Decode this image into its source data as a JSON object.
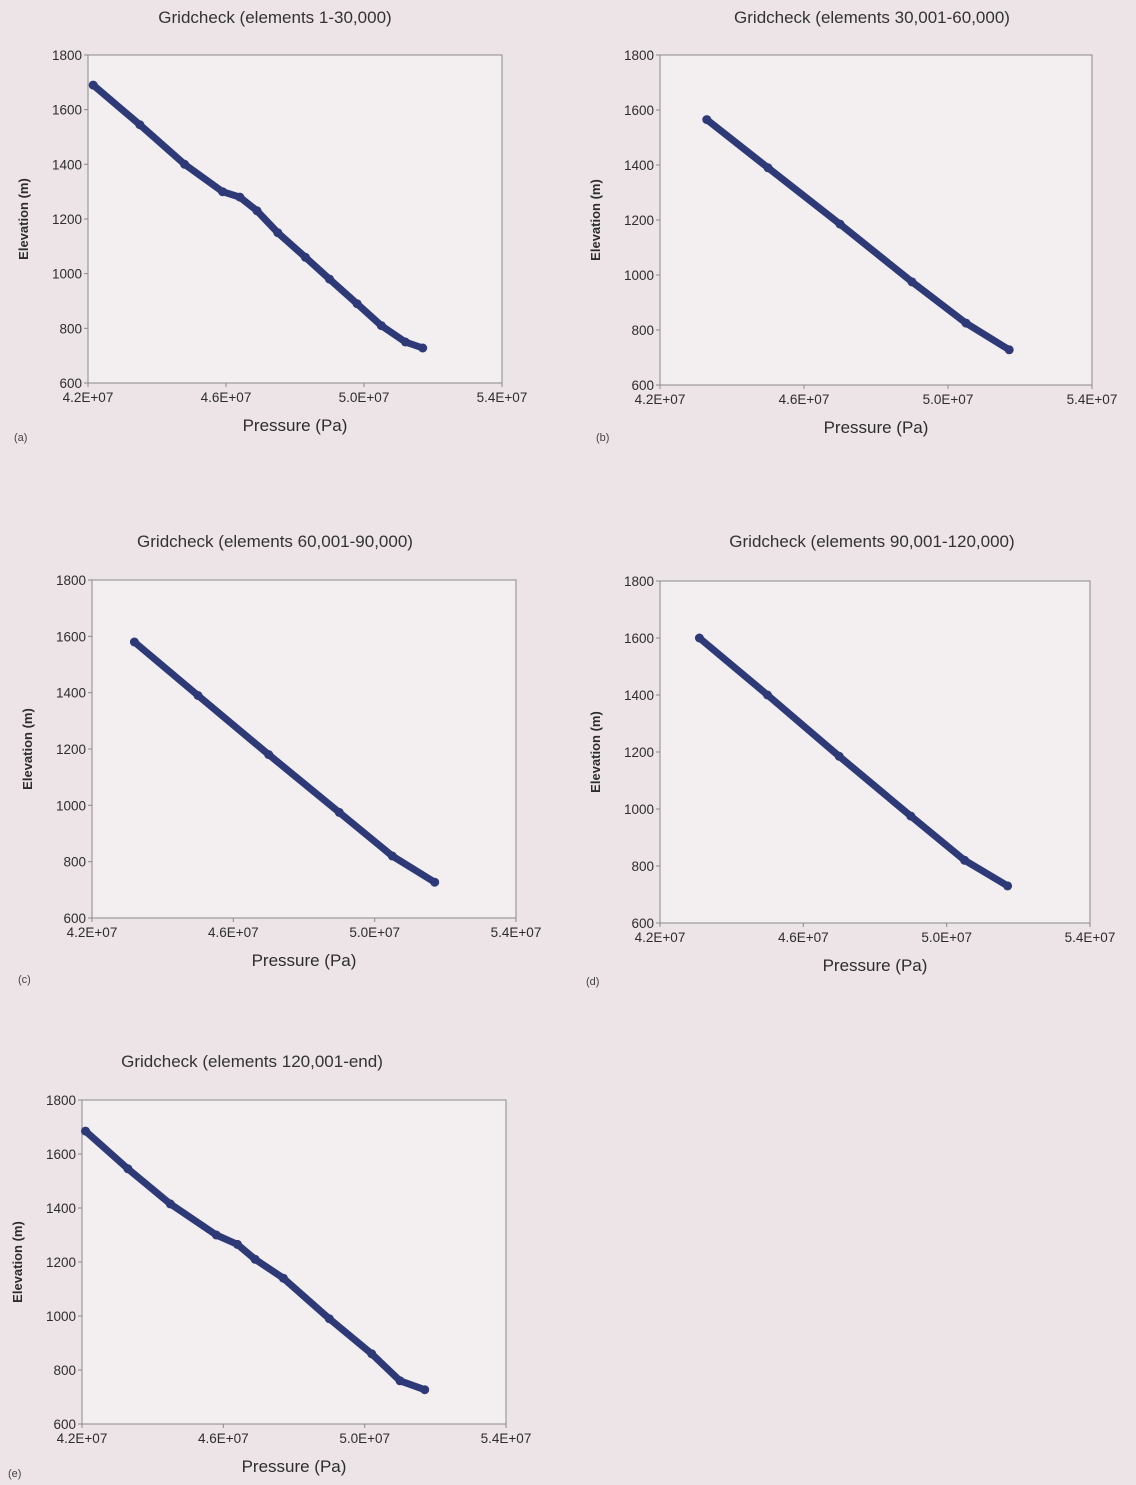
{
  "colors": {
    "series": "#2e3a78",
    "background": "#ece4e7",
    "plot_area": "#f3eef0",
    "axis": "#8a8a8a"
  },
  "chart_data": [
    {
      "type": "scatter",
      "panel": "(a)",
      "title": "Gridcheck (elements 1-30,000)",
      "xlabel": "Pressure (Pa)",
      "ylabel": "Elevation (m)",
      "xlim": [
        42000000,
        54000000
      ],
      "ylim": [
        600,
        1800
      ],
      "xticks": [
        "4.2E+07",
        "4.6E+07",
        "5.0E+07",
        "5.4E+07"
      ],
      "yticks": [
        "600",
        "800",
        "1000",
        "1200",
        "1400",
        "1600",
        "1800"
      ],
      "grid": false,
      "series": [
        {
          "points": [
            [
              42150000,
              1690
            ],
            [
              43500000,
              1545
            ],
            [
              44800000,
              1400
            ],
            [
              45900000,
              1300
            ],
            [
              46400000,
              1280
            ],
            [
              46900000,
              1230
            ],
            [
              47500000,
              1150
            ],
            [
              48300000,
              1060
            ],
            [
              49000000,
              980
            ],
            [
              49800000,
              890
            ],
            [
              50500000,
              810
            ],
            [
              51200000,
              750
            ],
            [
              51700000,
              728
            ]
          ]
        }
      ]
    },
    {
      "type": "scatter",
      "panel": "(b)",
      "title": "Gridcheck (elements 30,001-60,000)",
      "xlabel": "Pressure (Pa)",
      "ylabel": "Elevation (m)",
      "xlim": [
        42000000,
        54000000
      ],
      "ylim": [
        600,
        1800
      ],
      "xticks": [
        "4.2E+07",
        "4.6E+07",
        "5.0E+07",
        "5.4E+07"
      ],
      "yticks": [
        "600",
        "800",
        "1000",
        "1200",
        "1400",
        "1600",
        "1800"
      ],
      "grid": false,
      "series": [
        {
          "points": [
            [
              43300000,
              1565
            ],
            [
              45000000,
              1390
            ],
            [
              47000000,
              1185
            ],
            [
              49000000,
              975
            ],
            [
              50500000,
              825
            ],
            [
              51700000,
              728
            ]
          ]
        }
      ]
    },
    {
      "type": "scatter",
      "panel": "(c)",
      "title": "Gridcheck (elements 60,001-90,000)",
      "xlabel": "Pressure (Pa)",
      "ylabel": "Elevation (m)",
      "xlim": [
        42000000,
        54000000
      ],
      "ylim": [
        600,
        1800
      ],
      "xticks": [
        "4.2E+07",
        "4.6E+07",
        "5.0E+07",
        "5.4E+07"
      ],
      "yticks": [
        "600",
        "800",
        "1000",
        "1200",
        "1400",
        "1600",
        "1800"
      ],
      "grid": false,
      "series": [
        {
          "points": [
            [
              43200000,
              1580
            ],
            [
              45000000,
              1390
            ],
            [
              47000000,
              1180
            ],
            [
              49000000,
              975
            ],
            [
              50500000,
              820
            ],
            [
              51700000,
              727
            ]
          ]
        }
      ]
    },
    {
      "type": "scatter",
      "panel": "(d)",
      "title": "Gridcheck (elements 90,001-120,000)",
      "xlabel": "Pressure (Pa)",
      "ylabel": "Elevation (m)",
      "xlim": [
        42000000,
        54000000
      ],
      "ylim": [
        600,
        1800
      ],
      "xticks": [
        "4.2E+07",
        "4.6E+07",
        "5.0E+07",
        "5.4E+07"
      ],
      "yticks": [
        "600",
        "800",
        "1000",
        "1200",
        "1400",
        "1600",
        "1800"
      ],
      "grid": false,
      "series": [
        {
          "points": [
            [
              43100000,
              1600
            ],
            [
              45000000,
              1400
            ],
            [
              47000000,
              1185
            ],
            [
              49000000,
              975
            ],
            [
              50500000,
              820
            ],
            [
              51700000,
              730
            ]
          ]
        }
      ]
    },
    {
      "type": "scatter",
      "panel": "(e)",
      "title": "Gridcheck (elements 120,001-end)",
      "xlabel": "Pressure (Pa)",
      "ylabel": "Elevation (m)",
      "xlim": [
        42000000,
        54000000
      ],
      "ylim": [
        600,
        1800
      ],
      "xticks": [
        "4.2E+07",
        "4.6E+07",
        "5.0E+07",
        "5.4E+07"
      ],
      "yticks": [
        "600",
        "800",
        "1000",
        "1200",
        "1400",
        "1600",
        "1800"
      ],
      "grid": false,
      "series": [
        {
          "points": [
            [
              42100000,
              1685
            ],
            [
              43300000,
              1545
            ],
            [
              44500000,
              1415
            ],
            [
              45800000,
              1300
            ],
            [
              46400000,
              1265
            ],
            [
              46900000,
              1210
            ],
            [
              47700000,
              1140
            ],
            [
              49000000,
              990
            ],
            [
              50200000,
              860
            ],
            [
              51000000,
              760
            ],
            [
              51700000,
              727
            ]
          ]
        }
      ]
    }
  ]
}
